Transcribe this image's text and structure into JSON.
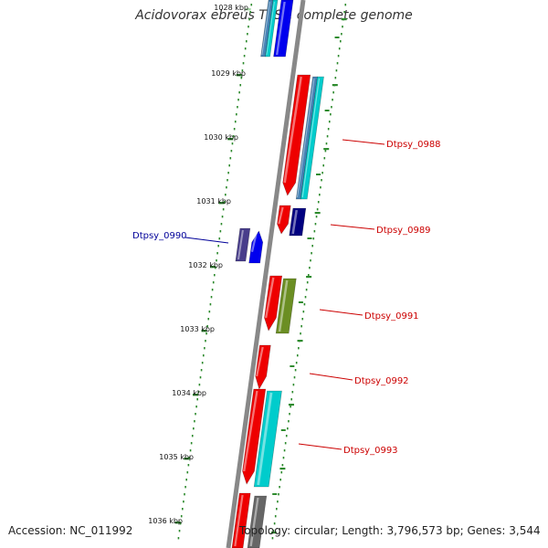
{
  "title": "Acidovorax ebreus TPSY, complete genome",
  "accession": "Accession: NC_011992",
  "topology": "Topology: circular; Length: 3,796,573 bp; Genes: 3,544",
  "kbp_labels": [
    {
      "text": "1028 kbp",
      "faded": true
    },
    {
      "text": "1029 kbp"
    },
    {
      "text": "1030 kbp"
    },
    {
      "text": "1031 kbp"
    },
    {
      "text": "1032 kbp"
    },
    {
      "text": "1033 kbp"
    },
    {
      "text": "1034 kbp"
    },
    {
      "text": "1035 kbp"
    },
    {
      "text": "1036 kbp"
    }
  ],
  "gene_labels": [
    {
      "text": "Dtpsy_0988",
      "color": "#cc0000"
    },
    {
      "text": "Dtpsy_0989",
      "color": "#cc0000"
    },
    {
      "text": "Dtpsy_0990",
      "color": "#000099"
    },
    {
      "text": "Dtpsy_0991",
      "color": "#cc0000"
    },
    {
      "text": "Dtpsy_0992",
      "color": "#cc0000"
    },
    {
      "text": "Dtpsy_0993",
      "color": "#cc0000"
    }
  ],
  "colors": {
    "backbone": "#888888",
    "dots": "#2e8b2e",
    "cds_red": "#ee0000",
    "blue": "#0000ee",
    "navy": "#000080",
    "cyan": "#00cccc",
    "steelblue": "#4682b4",
    "olive": "#6b8e23",
    "slate": "#483d8b",
    "gray": "#666666"
  }
}
